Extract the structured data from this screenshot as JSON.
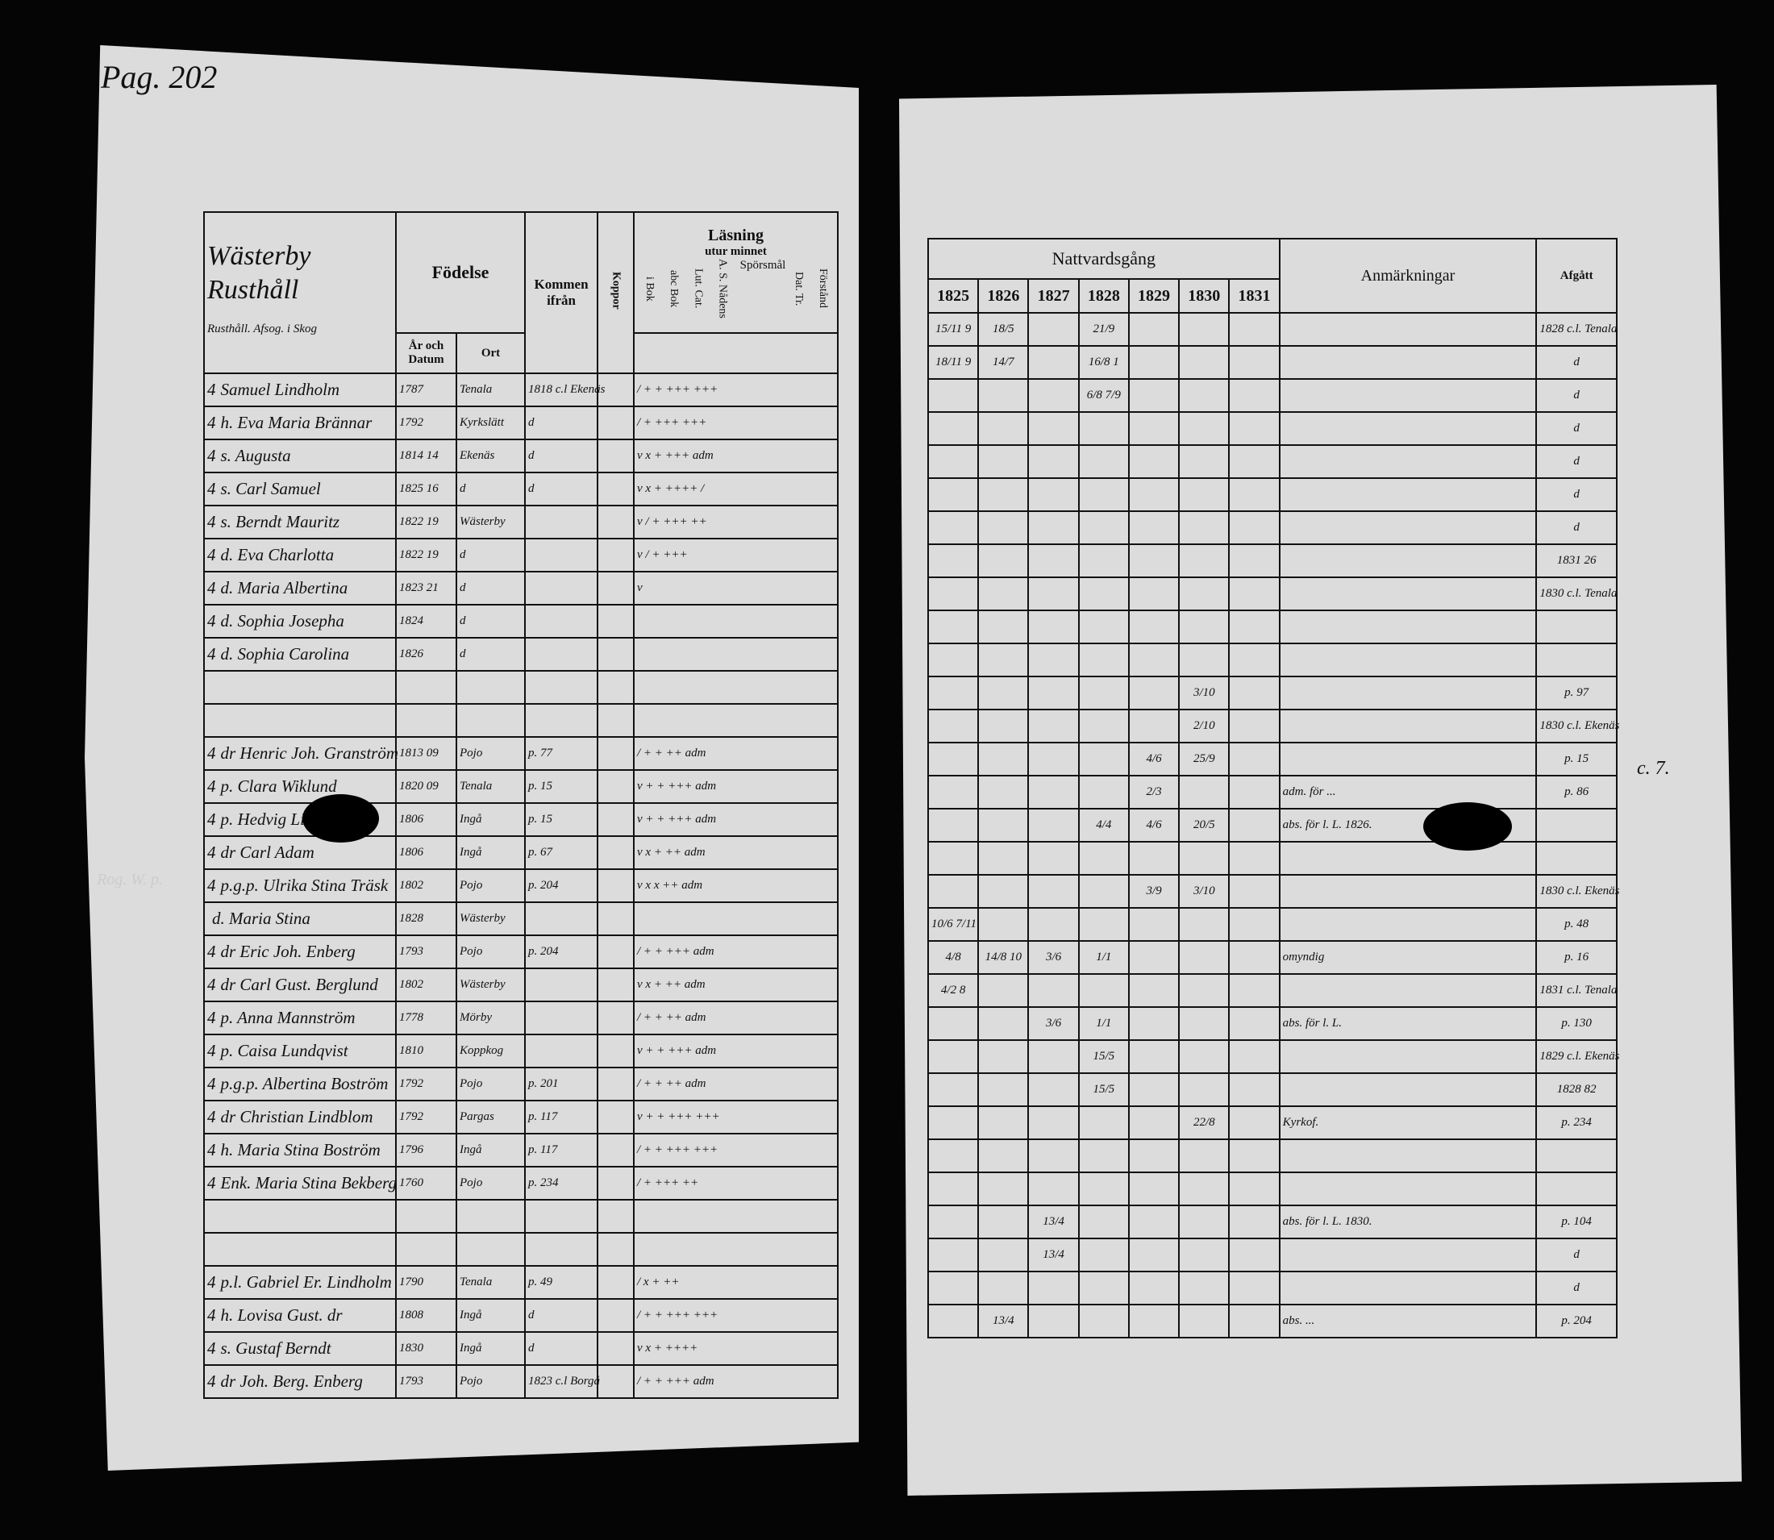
{
  "left_page": {
    "page_number": "Pag. 202",
    "village_title": "Wästerby Rusthåll",
    "subtitle": "Rusthåll. Afsog. i Skog",
    "headers": {
      "fodelse": "Födelse",
      "ar_och_datum": "År och Datum",
      "ort": "Ort",
      "kommen_ifran": "Kommen ifrån",
      "koppor": "Koppor",
      "lasning": "Läsning",
      "utur_minnet": "utur minnet",
      "i_bok": "i Bok",
      "abc_bok": "abc Bok",
      "lut_cat": "Lut. Cat.",
      "a_s_nadens": "A. S. Nådens",
      "sporsmal": "Spörsmål",
      "dat": "Dat. Tr.",
      "forstand": "Förstånd"
    },
    "rows": [
      {
        "mark": "4",
        "name": "Samuel Lindholm",
        "born": "1787",
        "ort": "Tenala",
        "from": "1818 c.l Ekenäs",
        "read": "/ + + +++ +++"
      },
      {
        "mark": "4",
        "name": "h. Eva Maria Brännar",
        "born": "1792",
        "ort": "Kyrkslätt",
        "from": "d",
        "read": "/ + +++ +++"
      },
      {
        "mark": "4",
        "name": "s. Augusta",
        "born": "1814 14",
        "ort": "Ekenäs",
        "from": "d",
        "read": "v x + +++ adm"
      },
      {
        "mark": "4",
        "name": "s. Carl Samuel",
        "born": "1825 16",
        "ort": "d",
        "from": "d",
        "read": "v x + ++++ /"
      },
      {
        "mark": "4",
        "name": "s. Berndt Mauritz",
        "born": "1822 19",
        "ort": "Wästerby",
        "from": "",
        "read": "v / + +++ ++"
      },
      {
        "mark": "4",
        "name": "d. Eva Charlotta",
        "born": "1822 19",
        "ort": "d",
        "from": "",
        "read": "v / + +++"
      },
      {
        "mark": "4",
        "name": "d. Maria Albertina",
        "born": "1823 21",
        "ort": "d",
        "from": "",
        "read": "v"
      },
      {
        "mark": "4",
        "name": "d. Sophia Josepha",
        "born": "1824",
        "ort": "d",
        "from": "",
        "read": ""
      },
      {
        "mark": "4",
        "name": "d. Sophia Carolina",
        "born": "1826",
        "ort": "d",
        "from": "",
        "read": ""
      },
      {
        "mark": "",
        "name": "",
        "born": "",
        "ort": "",
        "from": "",
        "read": ""
      },
      {
        "mark": "",
        "name": "",
        "born": "",
        "ort": "",
        "from": "",
        "read": ""
      },
      {
        "mark": "4",
        "name": "dr Henric Joh. Granström",
        "born": "1813 09",
        "ort": "Pojo",
        "from": "p. 77",
        "read": "/ + + ++ adm"
      },
      {
        "mark": "4",
        "name": "p. Clara Wiklund",
        "born": "1820 09",
        "ort": "Tenala",
        "from": "p. 15",
        "read": "v + + +++ adm"
      },
      {
        "mark": "4",
        "name": "p. Hedvig Lisa",
        "born": "1806",
        "ort": "Ingå",
        "from": "p. 15",
        "read": "v + + +++ adm"
      },
      {
        "mark": "4",
        "name": "dr Carl Adam",
        "born": "1806",
        "ort": "Ingå",
        "from": "p. 67",
        "read": "v x + ++ adm"
      },
      {
        "mark": "4",
        "name": "p.g.p. Ulrika Stina Träsk",
        "born": "1802",
        "ort": "Pojo",
        "from": "p. 204",
        "read": "v x x ++ adm"
      },
      {
        "mark": "",
        "name": "d. Maria Stina",
        "born": "1828",
        "ort": "Wästerby",
        "from": "",
        "read": ""
      },
      {
        "mark": "4",
        "name": "dr Eric Joh. Enberg",
        "born": "1793",
        "ort": "Pojo",
        "from": "p. 204",
        "read": "/ + + +++ adm"
      },
      {
        "mark": "4",
        "name": "dr Carl Gust. Berglund",
        "born": "1802",
        "ort": "Wästerby",
        "from": "",
        "read": "v x + ++ adm"
      },
      {
        "mark": "4",
        "name": "p. Anna Mannström",
        "born": "1778",
        "ort": "Mörby",
        "from": "",
        "read": "/ + + ++ adm"
      },
      {
        "mark": "4",
        "name": "p. Caisa Lundqvist",
        "born": "1810",
        "ort": "Koppkog",
        "from": "",
        "read": "v + + +++ adm"
      },
      {
        "mark": "4",
        "name": "p.g.p. Albertina Boström",
        "born": "1792",
        "ort": "Pojo",
        "from": "p. 201",
        "read": "/ + + ++ adm"
      },
      {
        "mark": "4",
        "name": "dr Christian Lindblom",
        "born": "1792",
        "ort": "Pargas",
        "from": "p. 117",
        "read": "v + + +++ +++"
      },
      {
        "mark": "4",
        "name": "h. Maria Stina Boström",
        "born": "1796",
        "ort": "Ingå",
        "from": "p. 117",
        "read": "/ + + +++ +++"
      },
      {
        "mark": "4",
        "name": "Enk. Maria Stina Bekberg",
        "born": "1760",
        "ort": "Pojo",
        "from": "p. 234",
        "read": "/ + +++ ++"
      },
      {
        "mark": "",
        "name": "",
        "born": "",
        "ort": "",
        "from": "",
        "read": ""
      },
      {
        "mark": "",
        "name": "",
        "born": "",
        "ort": "",
        "from": "",
        "read": ""
      },
      {
        "mark": "4",
        "name": "p.l. Gabriel Er. Lindholm",
        "born": "1790",
        "ort": "Tenala",
        "from": "p. 49",
        "read": "/ x + ++"
      },
      {
        "mark": "4",
        "name": "h. Lovisa Gust. dr",
        "born": "1808",
        "ort": "Ingå",
        "from": "d",
        "read": "/ + + +++ +++"
      },
      {
        "mark": "4",
        "name": "s. Gustaf Berndt",
        "born": "1830",
        "ort": "Ingå",
        "from": "d",
        "read": "v x + ++++"
      },
      {
        "mark": "4",
        "name": "dr Joh. Berg. Enberg",
        "born": "1793",
        "ort": "Pojo",
        "from": "1823 c.l Borgå",
        "read": "/ + + +++ adm"
      }
    ]
  },
  "right_page": {
    "headers": {
      "nattvardsgang": "Nattvardsgång",
      "years": [
        "1825",
        "1826",
        "1827",
        "1828",
        "1829",
        "1830",
        "1831"
      ],
      "anmarkningar": "Anmärkningar",
      "afgatt": "Afgått"
    },
    "rows": [
      {
        "d": [
          "15/11 9",
          "18/5",
          "",
          "21/9",
          "",
          "",
          ""
        ],
        "note": "",
        "afg": "1828 c.l. Tenala"
      },
      {
        "d": [
          "18/11 9",
          "14/7",
          "",
          "16/8 1",
          "",
          "",
          ""
        ],
        "note": "",
        "afg": "d"
      },
      {
        "d": [
          "",
          "",
          "",
          "6/8 7/9",
          "",
          "",
          ""
        ],
        "note": "",
        "afg": "d"
      },
      {
        "d": [
          "",
          "",
          "",
          "",
          "",
          "",
          ""
        ],
        "note": "",
        "afg": "d"
      },
      {
        "d": [
          "",
          "",
          "",
          "",
          "",
          "",
          ""
        ],
        "note": "",
        "afg": "d"
      },
      {
        "d": [
          "",
          "",
          "",
          "",
          "",
          "",
          ""
        ],
        "note": "",
        "afg": "d"
      },
      {
        "d": [
          "",
          "",
          "",
          "",
          "",
          "",
          ""
        ],
        "note": "",
        "afg": "d"
      },
      {
        "d": [
          "",
          "",
          "",
          "",
          "",
          "",
          ""
        ],
        "note": "",
        "afg": "1831 26"
      },
      {
        "d": [
          "",
          "",
          "",
          "",
          "",
          "",
          ""
        ],
        "note": "",
        "afg": "1830 c.l. Tenala"
      },
      {
        "d": [
          "",
          "",
          "",
          "",
          "",
          "",
          ""
        ],
        "note": "",
        "afg": ""
      },
      {
        "d": [
          "",
          "",
          "",
          "",
          "",
          "",
          ""
        ],
        "note": "",
        "afg": ""
      },
      {
        "d": [
          "",
          "",
          "",
          "",
          "",
          "3/10",
          ""
        ],
        "note": "",
        "afg": "p. 97"
      },
      {
        "d": [
          "",
          "",
          "",
          "",
          "",
          "2/10",
          ""
        ],
        "note": "",
        "afg": "1830 c.l. Ekenäs"
      },
      {
        "d": [
          "",
          "",
          "",
          "",
          "4/6",
          "25/9",
          ""
        ],
        "note": "",
        "afg": "p. 15"
      },
      {
        "d": [
          "",
          "",
          "",
          "",
          "2/3",
          "",
          ""
        ],
        "note": "adm. för ...",
        "afg": "p. 86"
      },
      {
        "d": [
          "",
          "",
          "",
          "4/4",
          "4/6",
          "20/5",
          ""
        ],
        "note": "abs. för l. L. 1826.",
        "afg": ""
      },
      {
        "d": [
          "",
          "",
          "",
          "",
          "",
          "",
          ""
        ],
        "note": "",
        "afg": ""
      },
      {
        "d": [
          "",
          "",
          "",
          "",
          "3/9",
          "3/10",
          ""
        ],
        "note": "",
        "afg": "1830 c.l. Ekenäs"
      },
      {
        "d": [
          "10/6 7/11",
          "",
          "",
          "",
          "",
          "",
          ""
        ],
        "note": "",
        "afg": "p. 48"
      },
      {
        "d": [
          "4/8",
          "14/8 10",
          "3/6",
          "1/1",
          "",
          "",
          ""
        ],
        "note": "omyndig",
        "afg": "p. 16"
      },
      {
        "d": [
          "4/2 8",
          "",
          "",
          "",
          "",
          "",
          ""
        ],
        "note": "",
        "afg": "1831 c.l. Tenala"
      },
      {
        "d": [
          "",
          "",
          "3/6",
          "1/1",
          "",
          "",
          ""
        ],
        "note": "abs. för l. L.",
        "afg": "p. 130"
      },
      {
        "d": [
          "",
          "",
          "",
          "15/5",
          "",
          "",
          ""
        ],
        "note": "",
        "afg": "1829 c.l. Ekenäs"
      },
      {
        "d": [
          "",
          "",
          "",
          "15/5",
          "",
          "",
          ""
        ],
        "note": "",
        "afg": "1828 82"
      },
      {
        "d": [
          "",
          "",
          "",
          "",
          "",
          "22/8",
          ""
        ],
        "note": "Kyrkof.",
        "afg": "p. 234"
      },
      {
        "d": [
          "",
          "",
          "",
          "",
          "",
          "",
          ""
        ],
        "note": "",
        "afg": ""
      },
      {
        "d": [
          "",
          "",
          "",
          "",
          "",
          "",
          ""
        ],
        "note": "",
        "afg": ""
      },
      {
        "d": [
          "",
          "",
          "13/4",
          "",
          "",
          "",
          ""
        ],
        "note": "abs. för l. L. 1830.",
        "afg": "p. 104"
      },
      {
        "d": [
          "",
          "",
          "13/4",
          "",
          "",
          "",
          ""
        ],
        "note": "",
        "afg": "d"
      },
      {
        "d": [
          "",
          "",
          "",
          "",
          "",
          "",
          ""
        ],
        "note": "",
        "afg": "d"
      },
      {
        "d": [
          "",
          "13/4",
          "",
          "",
          "",
          "",
          ""
        ],
        "note": "abs. ...",
        "afg": "p. 204"
      }
    ]
  },
  "margin_notes": [
    "Rog. W. p.",
    "c. 7."
  ]
}
